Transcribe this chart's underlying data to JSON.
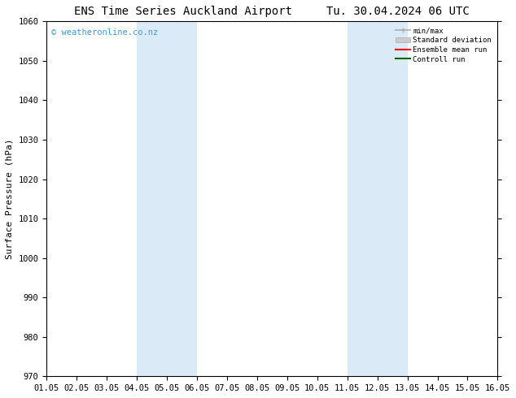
{
  "title_left": "ENS Time Series Auckland Airport",
  "title_right": "Tu. 30.04.2024 06 UTC",
  "ylabel": "Surface Pressure (hPa)",
  "xlabel": "",
  "ylim": [
    970,
    1060
  ],
  "yticks": [
    970,
    980,
    990,
    1000,
    1010,
    1020,
    1030,
    1040,
    1050,
    1060
  ],
  "xtick_labels": [
    "01.05",
    "02.05",
    "03.05",
    "04.05",
    "05.05",
    "06.05",
    "07.05",
    "08.05",
    "09.05",
    "10.05",
    "11.05",
    "12.05",
    "13.05",
    "14.05",
    "15.05",
    "16.05"
  ],
  "xtick_positions": [
    0,
    1,
    2,
    3,
    4,
    5,
    6,
    7,
    8,
    9,
    10,
    11,
    12,
    13,
    14,
    15
  ],
  "shade_bands": [
    {
      "x_start": 3,
      "x_end": 5,
      "color": "#daeaf7"
    },
    {
      "x_start": 10,
      "x_end": 12,
      "color": "#daeaf7"
    }
  ],
  "watermark": "© weatheronline.co.nz",
  "watermark_color": "#4499dd",
  "legend_items": [
    {
      "label": "min/max",
      "color": "#aaaaaa",
      "type": "line_caps"
    },
    {
      "label": "Standard deviation",
      "color": "#cccccc",
      "type": "bar"
    },
    {
      "label": "Ensemble mean run",
      "color": "#ff0000",
      "type": "line"
    },
    {
      "label": "Controll run",
      "color": "#006600",
      "type": "line"
    }
  ],
  "bg_color": "#ffffff",
  "plot_bg_color": "#ffffff",
  "spine_color": "#000000",
  "title_fontsize": 10,
  "axis_fontsize": 8,
  "tick_fontsize": 7.5
}
